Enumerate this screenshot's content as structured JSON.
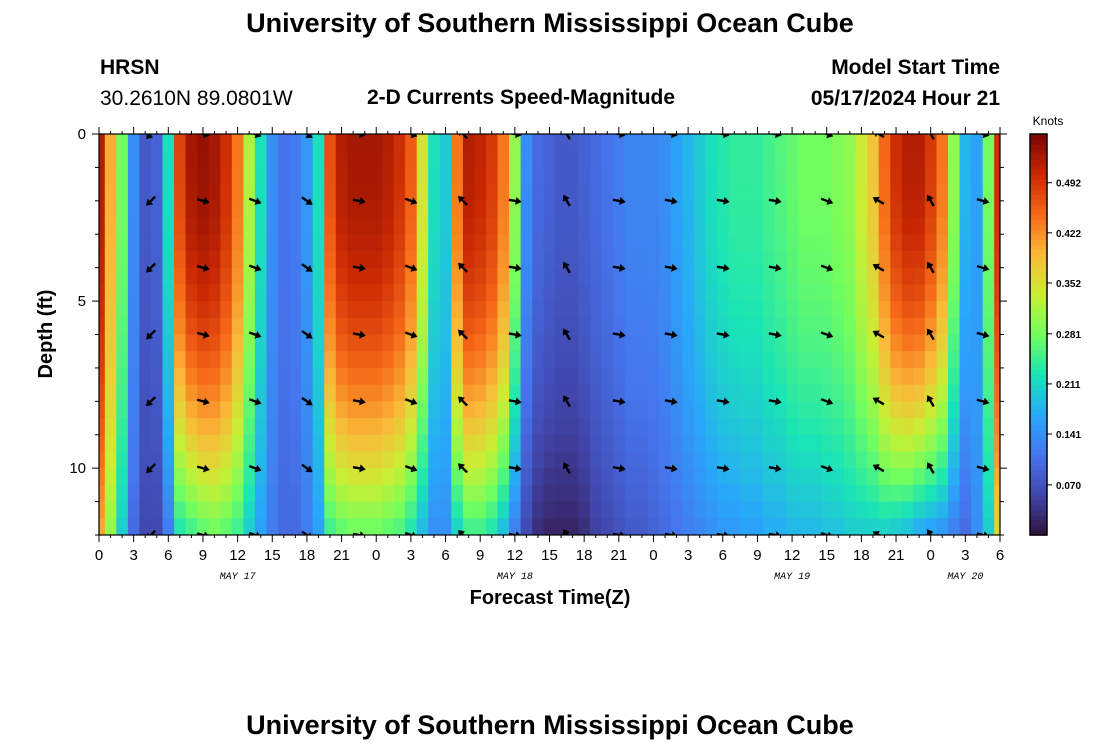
{
  "header": {
    "title": "University of Southern Mississippi Ocean Cube",
    "station": "HRSN",
    "coords": "30.2610N  89.0801W",
    "chart_title": "2-D Currents Speed-Magnitude",
    "model_label": "Model Start Time",
    "model_time": "05/17/2024 Hour 21"
  },
  "footer": {
    "title": "University of Southern Mississippi Ocean Cube"
  },
  "chart_data": {
    "type": "heatmap",
    "title": "2-D Currents Speed-Magnitude",
    "xlabel": "Forecast Time(Z)",
    "ylabel": "Depth (ft)",
    "colorbar_label": "Knots",
    "x_ticks": [
      "0",
      "3",
      "6",
      "9",
      "12",
      "15",
      "18",
      "21",
      "0",
      "3",
      "6",
      "9",
      "12",
      "15",
      "18",
      "21",
      "0",
      "3",
      "6",
      "9",
      "12",
      "15",
      "18",
      "21",
      "0",
      "3",
      "6"
    ],
    "date_labels": [
      {
        "label": "MAY 17",
        "hour": 12
      },
      {
        "label": "MAY 18",
        "hour": 36
      },
      {
        "label": "MAY 19",
        "hour": 60
      },
      {
        "label": "MAY 20",
        "hour": 75
      }
    ],
    "xlim": [
      0,
      78
    ],
    "ylim": [
      0,
      12
    ],
    "y_ticks": [
      0,
      5,
      10
    ],
    "color_ticks": [
      0.07,
      0.141,
      0.211,
      0.281,
      0.352,
      0.422,
      0.492
    ],
    "color_range": [
      0.0,
      0.56
    ],
    "speed_profile": {
      "hours": [
        0,
        1,
        2,
        3,
        4,
        5,
        6,
        7,
        8,
        9,
        10,
        11,
        12,
        13,
        14,
        15,
        16,
        17,
        18,
        19,
        20,
        21,
        22,
        23,
        24,
        25,
        26,
        27,
        28,
        29,
        30,
        31,
        32,
        33,
        34,
        35,
        36,
        37,
        38,
        39,
        40,
        41,
        42,
        43,
        44,
        45,
        46,
        47,
        48,
        49,
        50,
        51,
        52,
        53,
        54,
        55,
        56,
        57,
        58,
        59,
        60,
        61,
        62,
        63,
        64,
        65,
        66,
        67,
        68,
        69,
        70,
        71,
        72,
        73,
        74,
        75,
        76,
        77,
        78
      ],
      "surface_knots": [
        0.52,
        0.4,
        0.28,
        0.14,
        0.08,
        0.09,
        0.22,
        0.48,
        0.53,
        0.54,
        0.53,
        0.5,
        0.44,
        0.32,
        0.22,
        0.14,
        0.11,
        0.12,
        0.15,
        0.22,
        0.47,
        0.52,
        0.53,
        0.53,
        0.53,
        0.52,
        0.5,
        0.46,
        0.35,
        0.22,
        0.2,
        0.44,
        0.52,
        0.51,
        0.49,
        0.44,
        0.3,
        0.14,
        0.1,
        0.09,
        0.08,
        0.08,
        0.09,
        0.1,
        0.11,
        0.12,
        0.13,
        0.13,
        0.13,
        0.14,
        0.16,
        0.18,
        0.2,
        0.22,
        0.23,
        0.24,
        0.24,
        0.24,
        0.25,
        0.26,
        0.27,
        0.28,
        0.28,
        0.28,
        0.29,
        0.3,
        0.34,
        0.38,
        0.45,
        0.5,
        0.52,
        0.52,
        0.49,
        0.44,
        0.3,
        0.18,
        0.16,
        0.28,
        0.5
      ],
      "bottom_knots": [
        0.4,
        0.3,
        0.2,
        0.1,
        0.06,
        0.06,
        0.12,
        0.22,
        0.24,
        0.26,
        0.27,
        0.26,
        0.24,
        0.2,
        0.16,
        0.12,
        0.1,
        0.1,
        0.12,
        0.16,
        0.24,
        0.26,
        0.27,
        0.27,
        0.27,
        0.26,
        0.25,
        0.22,
        0.18,
        0.14,
        0.14,
        0.2,
        0.24,
        0.24,
        0.22,
        0.18,
        0.12,
        0.06,
        0.03,
        0.02,
        0.02,
        0.02,
        0.03,
        0.05,
        0.06,
        0.07,
        0.08,
        0.08,
        0.09,
        0.1,
        0.11,
        0.12,
        0.13,
        0.14,
        0.15,
        0.15,
        0.16,
        0.16,
        0.17,
        0.17,
        0.18,
        0.18,
        0.18,
        0.19,
        0.19,
        0.2,
        0.2,
        0.2,
        0.2,
        0.19,
        0.18,
        0.16,
        0.15,
        0.14,
        0.12,
        0.1,
        0.14,
        0.2,
        0.36
      ]
    },
    "arrows": {
      "hours": [
        4.5,
        9,
        13.5,
        18,
        22.5,
        27,
        31.5,
        36,
        40.5,
        45,
        49.5,
        54,
        58.5,
        63,
        67.5,
        72,
        76.5
      ],
      "depths": [
        0,
        2,
        4,
        6,
        8,
        10,
        12
      ],
      "angles_deg": [
        135,
        15,
        20,
        35,
        10,
        20,
        -135,
        10,
        -120,
        10,
        10,
        10,
        10,
        20,
        -150,
        -120,
        15
      ]
    }
  }
}
